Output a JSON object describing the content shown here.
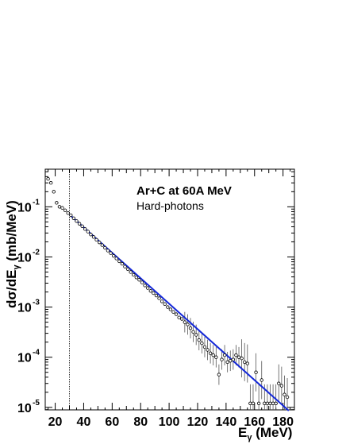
{
  "chart_data": {
    "type": "scatter",
    "ylabel": "dσ/dE",
    "ylabel_sub": "γ",
    "ylabel_unit": " (mb/MeV)",
    "xlabel": "E",
    "xlabel_sub": "γ",
    "xlabel_unit": " (MeV)",
    "annotation_title": "Ar+C at 60A MeV",
    "annotation_subtitle": "Hard-photons",
    "xlim": [
      13,
      188
    ],
    "ylim_log10": [
      -5.05,
      -0.25
    ],
    "y_scale": "log",
    "x_ticks": [
      20,
      40,
      60,
      80,
      100,
      120,
      140,
      160,
      180
    ],
    "y_ticks": [
      {
        "base": "10",
        "exp": "-1",
        "log": -1
      },
      {
        "base": "10",
        "exp": "-2",
        "log": -2
      },
      {
        "base": "10",
        "exp": "-3",
        "log": -3
      },
      {
        "base": "10",
        "exp": "-4",
        "log": -4
      },
      {
        "base": "10",
        "exp": "-5",
        "log": -5
      }
    ],
    "cut_line_x": 30,
    "fit_line": {
      "x0": 30,
      "y0": 0.07,
      "x1": 184,
      "y1": 8.6e-06,
      "color": "#1428d8"
    },
    "marker_color": "#000000",
    "points": [
      [
        15,
        0.36
      ],
      [
        17,
        0.3
      ],
      [
        19,
        0.2
      ],
      [
        21,
        0.12
      ],
      [
        23,
        0.1
      ],
      [
        25,
        0.095
      ],
      [
        27,
        0.085
      ],
      [
        29,
        0.075
      ],
      [
        31,
        0.068
      ],
      [
        33,
        0.059
      ],
      [
        35,
        0.052
      ],
      [
        37,
        0.046
      ],
      [
        39,
        0.041
      ],
      [
        41,
        0.036
      ],
      [
        43,
        0.032
      ],
      [
        45,
        0.028
      ],
      [
        47,
        0.025
      ],
      [
        49,
        0.022
      ],
      [
        51,
        0.0195
      ],
      [
        53,
        0.0172
      ],
      [
        55,
        0.0152
      ],
      [
        57,
        0.0134
      ],
      [
        59,
        0.0119
      ],
      [
        61,
        0.0105
      ],
      [
        63,
        0.0093
      ],
      [
        65,
        0.0082
      ],
      [
        67,
        0.0073
      ],
      [
        69,
        0.0064
      ],
      [
        71,
        0.0057
      ],
      [
        73,
        0.005
      ],
      [
        75,
        0.0044
      ],
      [
        77,
        0.0039
      ],
      [
        79,
        0.0035
      ],
      [
        81,
        0.0031
      ],
      [
        83,
        0.0027
      ],
      [
        85,
        0.0024
      ],
      [
        87,
        0.0021
      ],
      [
        89,
        0.0019
      ],
      [
        91,
        0.0017
      ],
      [
        93,
        0.0015
      ],
      [
        95,
        0.0013
      ],
      [
        97,
        0.00115
      ],
      [
        99,
        0.001
      ],
      [
        101,
        0.0009
      ],
      [
        103,
        0.0008
      ],
      [
        105,
        0.00072
      ],
      [
        107,
        0.00062
      ],
      [
        109,
        0.00058
      ],
      [
        111,
        0.0005
      ],
      [
        113,
        0.00045
      ],
      [
        115,
        0.00038
      ],
      [
        117,
        0.00032
      ],
      [
        119,
        0.00028
      ],
      [
        121,
        0.00022
      ],
      [
        123,
        0.00019
      ],
      [
        125,
        0.00016
      ],
      [
        127,
        0.00014
      ],
      [
        129,
        0.00012
      ],
      [
        131,
        0.00011
      ],
      [
        133,
        0.0001
      ],
      [
        135,
        4.5e-05
      ],
      [
        137,
        9e-05
      ],
      [
        139,
        0.00011
      ],
      [
        141,
        8e-05
      ],
      [
        143,
        8.5e-05
      ],
      [
        145,
        9e-05
      ],
      [
        147,
        0.00011
      ],
      [
        149,
        0.0001
      ],
      [
        151,
        9.5e-05
      ],
      [
        153,
        8e-05
      ],
      [
        155,
        7.5e-05
      ],
      [
        157,
        1.2e-05
      ],
      [
        159,
        1.2e-05
      ],
      [
        161,
        5e-05
      ],
      [
        163,
        1.2e-05
      ],
      [
        165,
        3.5e-05
      ],
      [
        167,
        1.2e-05
      ],
      [
        169,
        1.2e-05
      ],
      [
        171,
        1.2e-05
      ],
      [
        173,
        1.2e-05
      ],
      [
        175,
        1.2e-05
      ],
      [
        177,
        3e-05
      ],
      [
        179,
        2.7e-05
      ],
      [
        181,
        1.8e-05
      ],
      [
        183,
        1.6e-05
      ]
    ]
  }
}
